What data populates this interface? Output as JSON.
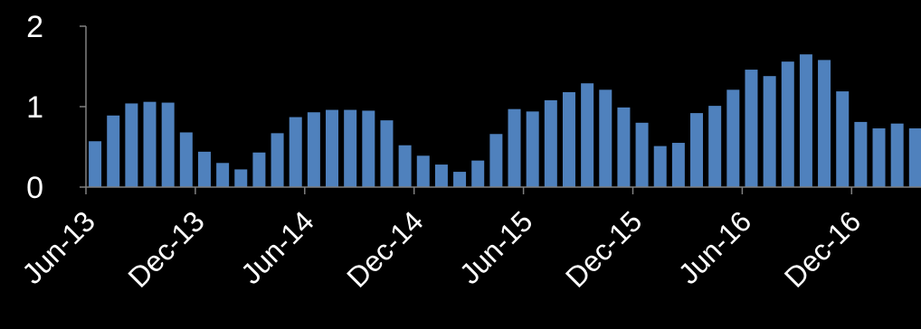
{
  "chart_data": {
    "type": "bar",
    "title": "",
    "xlabel": "",
    "ylabel": "",
    "ylim": [
      0,
      2
    ],
    "yticks": [
      "0",
      "1",
      "2"
    ],
    "grid": false,
    "legend": "none",
    "x_tick_labels": [
      "Jun-13",
      "Dec-13",
      "Jun-14",
      "Dec-14",
      "Jun-15",
      "Dec-15",
      "Jun-16",
      "Dec-16"
    ],
    "categories": [
      "Jun-13",
      "Jul-13",
      "Aug-13",
      "Sep-13",
      "Oct-13",
      "Nov-13",
      "Dec-13",
      "Jan-14",
      "Feb-14",
      "Mar-14",
      "Apr-14",
      "May-14",
      "Jun-14",
      "Jul-14",
      "Aug-14",
      "Sep-14",
      "Oct-14",
      "Nov-14",
      "Dec-14",
      "Jan-15",
      "Feb-15",
      "Mar-15",
      "Apr-15",
      "May-15",
      "Jun-15",
      "Jul-15",
      "Aug-15",
      "Sep-15",
      "Oct-15",
      "Nov-15",
      "Dec-15",
      "Jan-16",
      "Feb-16",
      "Mar-16",
      "Apr-16",
      "May-16",
      "Jun-16",
      "Jul-16",
      "Aug-16",
      "Sep-16",
      "Oct-16",
      "Nov-16",
      "Dec-16",
      "Jan-17",
      "Feb-17",
      "Mar-17"
    ],
    "values": [
      0.57,
      0.89,
      1.04,
      1.06,
      1.05,
      0.68,
      0.44,
      0.3,
      0.22,
      0.43,
      0.67,
      0.87,
      0.93,
      0.96,
      0.96,
      0.95,
      0.83,
      0.52,
      0.39,
      0.28,
      0.19,
      0.33,
      0.66,
      0.97,
      0.94,
      1.08,
      1.18,
      1.29,
      1.21,
      0.99,
      0.8,
      0.51,
      0.55,
      0.92,
      1.01,
      1.21,
      1.46,
      1.38,
      1.56,
      1.65,
      1.58,
      1.19,
      0.81,
      0.73,
      0.79,
      0.73
    ],
    "colors": {
      "bar": "#4f81bd",
      "axis": "#808080",
      "text": "#ffffff",
      "background": "#000000"
    }
  }
}
